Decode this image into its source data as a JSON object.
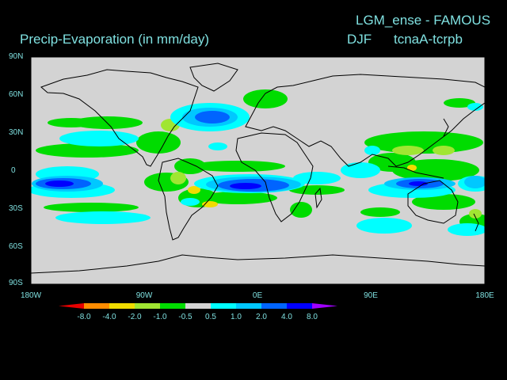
{
  "title_model": "LGM_ense - FAMOUS",
  "title_variable": "Precip-Evaporation (in mm/day)",
  "season": "DJF",
  "experiment": "tcnaA-tcrpb",
  "lat_labels": [
    "90N",
    "60N",
    "30N",
    "0",
    "30S",
    "60S",
    "90S"
  ],
  "lon_labels": [
    "180W",
    "90W",
    "0E",
    "90E",
    "180E"
  ],
  "colorbar": {
    "levels": [
      "-8.0",
      "-4.0",
      "-2.0",
      "-1.0",
      "-0.5",
      "0.5",
      "1.0",
      "2.0",
      "4.0",
      "8.0"
    ],
    "colors": [
      "#e60000",
      "#ff8c00",
      "#f0dc00",
      "#a0e632",
      "#00dc00",
      "#d3d3d3",
      "#00ffff",
      "#00c8ff",
      "#0064ff",
      "#0000ff",
      "#a000ff"
    ]
  },
  "colors": {
    "land_outline": "#000000",
    "background": "#000000",
    "text": "#7fe0e0",
    "field_neutral": "#d3d3d3"
  }
}
